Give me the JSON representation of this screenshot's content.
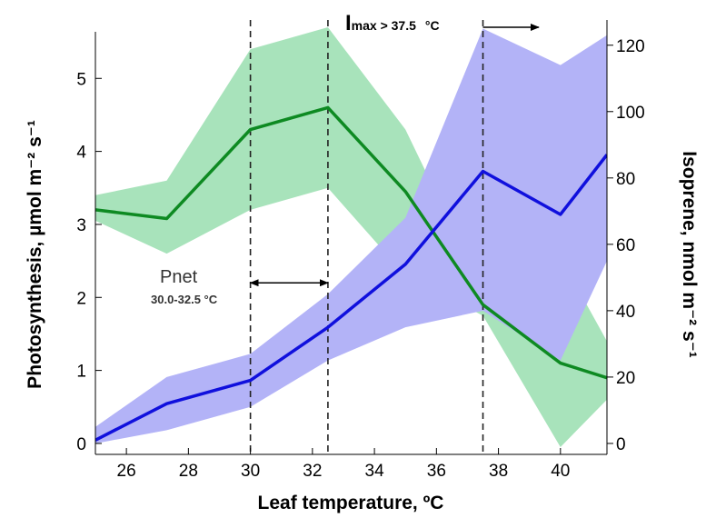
{
  "chart_data": {
    "type": "line",
    "title": "",
    "xlabel": "Leaf temperature, ºC",
    "ylabel_left": "Photosynthesis, µmol m⁻² s⁻¹",
    "ylabel_right": "Isoprene, nmol m⁻² s⁻¹",
    "xlim": [
      25,
      41.5
    ],
    "ylim_left": [
      -0.15,
      5.8
    ],
    "ylim_right": [
      -3.3,
      127.6
    ],
    "x_ticks": [
      "26",
      "28",
      "30",
      "32",
      "34",
      "36",
      "38",
      "40"
    ],
    "y_left_ticks": [
      "0",
      "1",
      "2",
      "3",
      "4",
      "5"
    ],
    "y_right_ticks": [
      "0",
      "20",
      "40",
      "60",
      "80",
      "100",
      "120"
    ],
    "grid": false,
    "series": [
      {
        "axis": "left",
        "color": "#0e8a22",
        "band_color": "#a8e3bb",
        "x": [
          25,
          27.3,
          30,
          32.5,
          35,
          37.5,
          40,
          41.5
        ],
        "values": [
          3.2,
          3.08,
          4.3,
          4.6,
          3.45,
          1.9,
          1.1,
          0.9
        ],
        "lower": [
          3.05,
          2.6,
          3.2,
          3.5,
          2.3,
          1.75,
          -0.05,
          0.6
        ],
        "upper": [
          3.4,
          3.6,
          5.4,
          5.7,
          4.3,
          2.1,
          2.55,
          1.4
        ]
      },
      {
        "axis": "right",
        "color": "#1010dd",
        "band_color": "#b3b3f7",
        "x": [
          25,
          27.3,
          30,
          32.5,
          35,
          37.5,
          40,
          41.5
        ],
        "values": [
          1,
          12,
          19,
          35,
          54,
          82,
          69,
          87
        ],
        "lower": [
          0,
          4,
          11,
          25,
          35,
          40,
          25,
          55
        ],
        "upper": [
          5,
          20,
          27,
          45,
          68,
          125,
          114,
          123
        ]
      }
    ],
    "vlines": [
      30,
      32.5,
      37.5
    ],
    "annotations": {
      "pnet_label": "Pnet",
      "pnet_range": "30.0-32.5 °C",
      "pnet_arrow": [
        30,
        32.5
      ],
      "pnet_arrow_y": 2.2,
      "imax_I": "I",
      "imax_sub": "max > 37.5",
      "imax_unit": "°C",
      "imax_arrow_x": [
        37.5,
        39.3
      ]
    }
  }
}
